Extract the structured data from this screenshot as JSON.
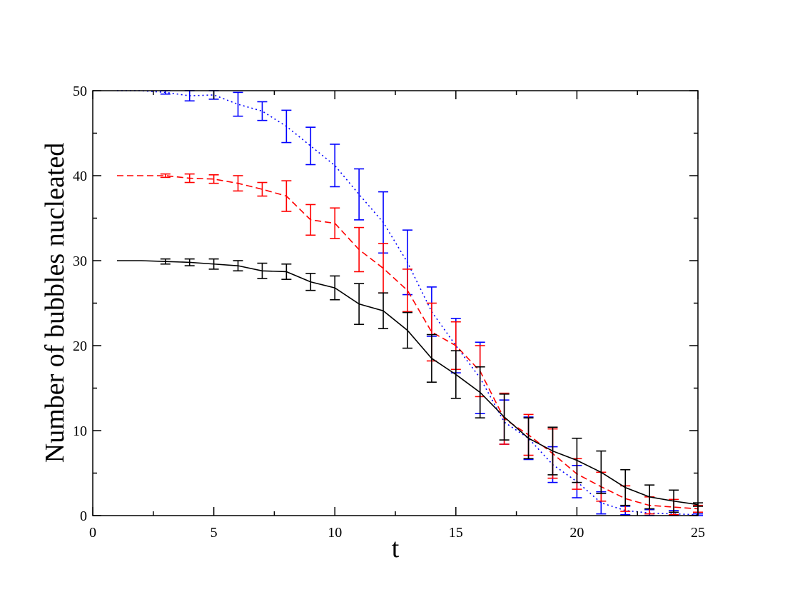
{
  "chart_data": {
    "type": "line",
    "title": "",
    "xlabel": "t",
    "ylabel": "Number of bubbles nucleated",
    "xlim": [
      0,
      25
    ],
    "ylim": [
      0,
      50
    ],
    "xticks": [
      0,
      5,
      10,
      15,
      20,
      25
    ],
    "yticks": [
      0,
      10,
      20,
      30,
      40,
      50
    ],
    "grid": false,
    "legend": "none",
    "series": [
      {
        "color": "#0000ff",
        "dash": "dotted",
        "x": [
          1,
          2,
          3,
          4,
          5,
          6,
          7,
          8,
          9,
          10,
          11,
          12,
          13,
          14,
          15,
          16,
          17,
          18,
          19,
          20,
          21,
          22,
          23,
          24,
          25
        ],
        "y": [
          50,
          50,
          49.8,
          49.4,
          49.5,
          48.4,
          47.6,
          45.8,
          43.5,
          41.2,
          37.8,
          34.5,
          29.8,
          24.0,
          20.0,
          16.2,
          11.0,
          9.1,
          6.0,
          4.0,
          1.5,
          0.6,
          0.3,
          0.2,
          0.1
        ],
        "err": [
          0,
          0,
          0.2,
          0.6,
          0.5,
          1.4,
          1.1,
          1.9,
          2.2,
          2.5,
          3.0,
          3.6,
          3.8,
          2.9,
          3.2,
          4.2,
          2.6,
          2.5,
          2.1,
          1.9,
          1.3,
          0.5,
          0.4,
          0.4,
          0.1
        ]
      },
      {
        "color": "#ff0000",
        "dash": "dashed",
        "x": [
          1,
          2,
          3,
          4,
          5,
          6,
          7,
          8,
          9,
          10,
          11,
          12,
          13,
          14,
          15,
          16,
          17,
          18,
          19,
          20,
          21,
          22,
          23,
          24,
          25
        ],
        "y": [
          40,
          40,
          40.0,
          39.7,
          39.6,
          39.1,
          38.4,
          37.6,
          34.8,
          34.4,
          31.3,
          29.1,
          26.5,
          21.6,
          20.0,
          17.0,
          11.4,
          9.5,
          7.3,
          4.9,
          3.4,
          2.0,
          1.2,
          1.0,
          0.8
        ],
        "err": [
          0,
          0,
          0.2,
          0.5,
          0.5,
          0.9,
          0.8,
          1.8,
          1.8,
          1.8,
          2.6,
          2.9,
          2.5,
          3.4,
          2.8,
          3.0,
          3.0,
          2.4,
          2.9,
          1.8,
          1.7,
          1.5,
          1.0,
          0.9,
          0.4
        ]
      },
      {
        "color": "#000000",
        "dash": "solid",
        "x": [
          1,
          2,
          3,
          4,
          5,
          6,
          7,
          8,
          9,
          10,
          11,
          12,
          13,
          14,
          15,
          16,
          17,
          18,
          19,
          20,
          21,
          22,
          23,
          24,
          25
        ],
        "y": [
          30,
          30,
          29.9,
          29.8,
          29.6,
          29.4,
          28.8,
          28.7,
          27.5,
          26.8,
          24.9,
          24.1,
          21.8,
          18.5,
          16.6,
          14.5,
          11.6,
          9.1,
          7.6,
          6.5,
          5.1,
          3.3,
          2.2,
          1.7,
          1.3
        ],
        "err": [
          0,
          0,
          0.3,
          0.4,
          0.6,
          0.6,
          0.9,
          0.9,
          1.0,
          1.4,
          2.4,
          2.1,
          2.1,
          2.8,
          2.8,
          3.0,
          2.7,
          2.4,
          2.8,
          2.6,
          2.5,
          2.1,
          1.4,
          1.3,
          0.2
        ]
      }
    ]
  }
}
